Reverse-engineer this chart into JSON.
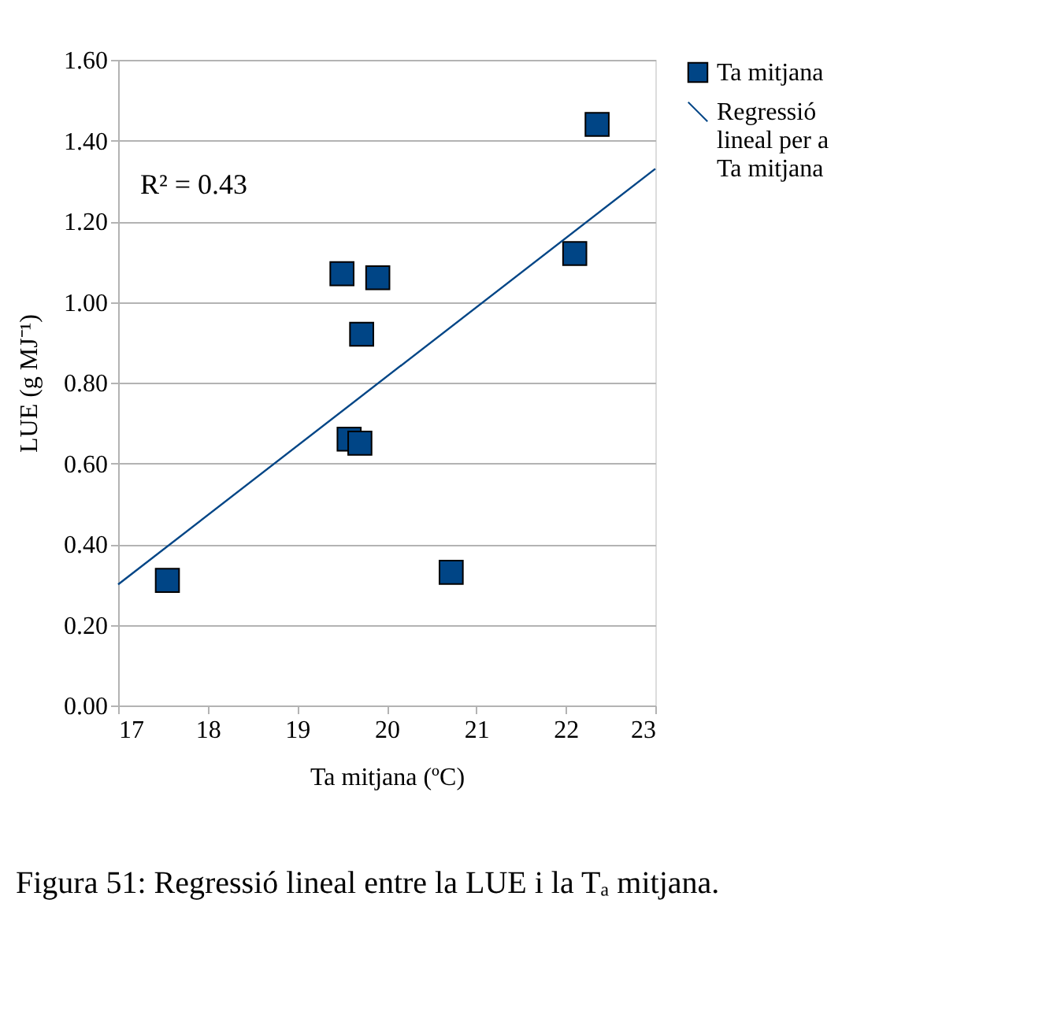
{
  "chart_data": {
    "type": "scatter",
    "xlabel": "Ta mitjana (ºC)",
    "ylabel": "LUE (g MJ⁻¹)",
    "title": "Figura 51: Regressió lineal entre la LUE i la Tₐ mitjana.",
    "annotations": [
      "R² = 0.43"
    ],
    "series": [
      {
        "name": "Ta mitjana",
        "color": "#004586",
        "marker": "square",
        "x": [
          17.55,
          19.5,
          19.9,
          19.72,
          19.58,
          19.7,
          20.72,
          22.1,
          22.35
        ],
        "values": [
          0.31,
          1.07,
          1.06,
          0.92,
          0.66,
          0.65,
          0.33,
          1.12,
          1.44
        ]
      },
      {
        "name": "Regressió lineal per a Ta mitjana",
        "type": "line",
        "color": "#004586",
        "marker": "none",
        "line_style": "solid",
        "x": [
          17,
          23
        ],
        "values": [
          0.3,
          1.33
        ]
      }
    ],
    "xlim": [
      17,
      23
    ],
    "xticks": [
      17,
      18,
      19,
      20,
      21,
      22,
      23
    ],
    "ylim": [
      0,
      1.6
    ],
    "yticks": [
      {
        "value": 0,
        "label": "0.00"
      },
      {
        "value": 0.2,
        "label": "0.20"
      },
      {
        "value": 0.4,
        "label": "0.40"
      },
      {
        "value": 0.6,
        "label": "0.60"
      },
      {
        "value": 0.8,
        "label": "0.80"
      },
      {
        "value": 1.0,
        "label": "1.00"
      },
      {
        "value": 1.2,
        "label": "1.20"
      },
      {
        "value": 1.4,
        "label": "1.40"
      },
      {
        "value": 1.6,
        "label": "1.60"
      }
    ],
    "grid": "y",
    "legend": "right"
  }
}
